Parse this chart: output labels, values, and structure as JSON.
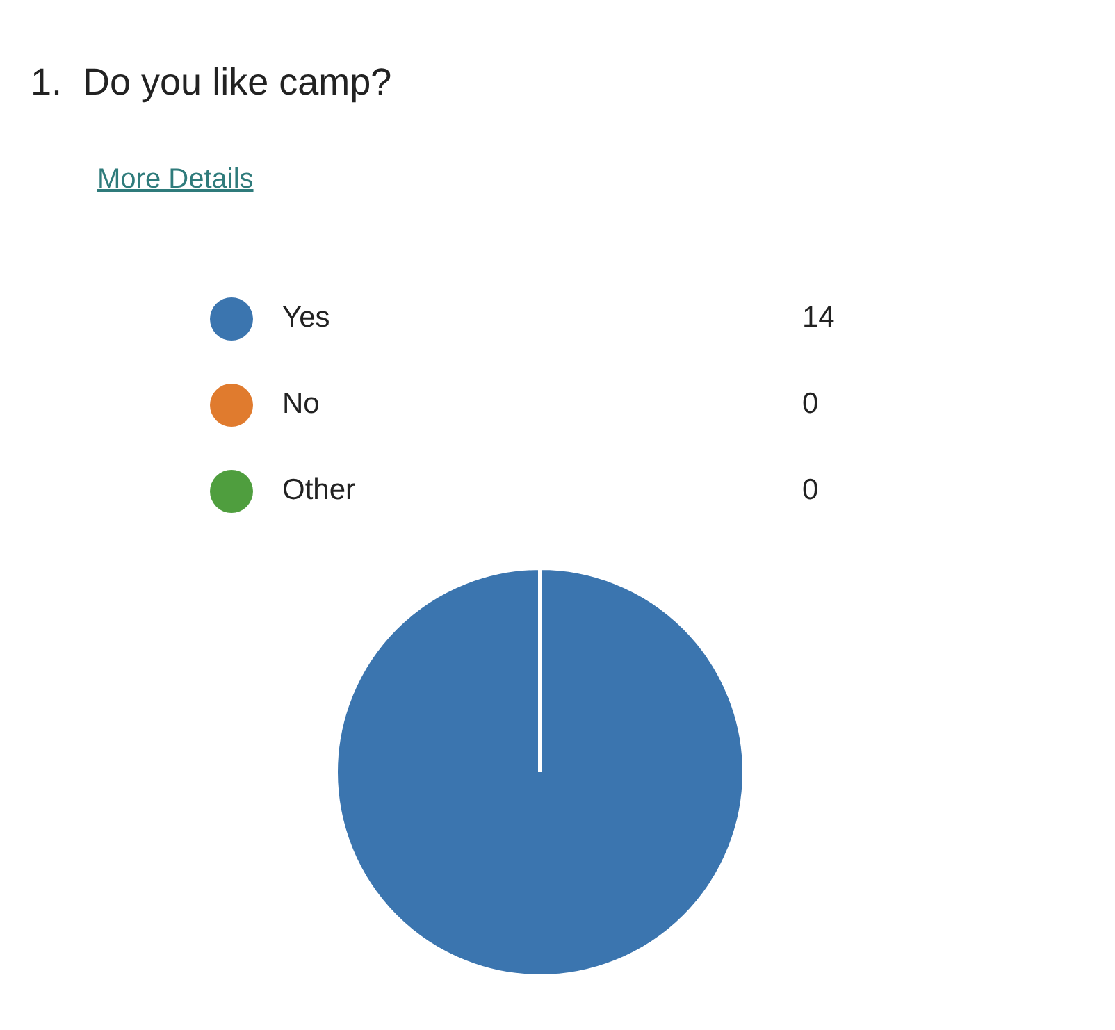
{
  "chart_data": {
    "type": "pie",
    "title": "1.  Do you like camp?",
    "annotations": [
      "More Details"
    ],
    "categories": [
      "Yes",
      "No",
      "Other"
    ],
    "values": [
      14,
      0,
      0
    ],
    "colors": [
      "#3b75af",
      "#e07b2e",
      "#4f9e3e"
    ],
    "value_labels": [
      "14",
      "0",
      "0"
    ],
    "legend": "top"
  }
}
